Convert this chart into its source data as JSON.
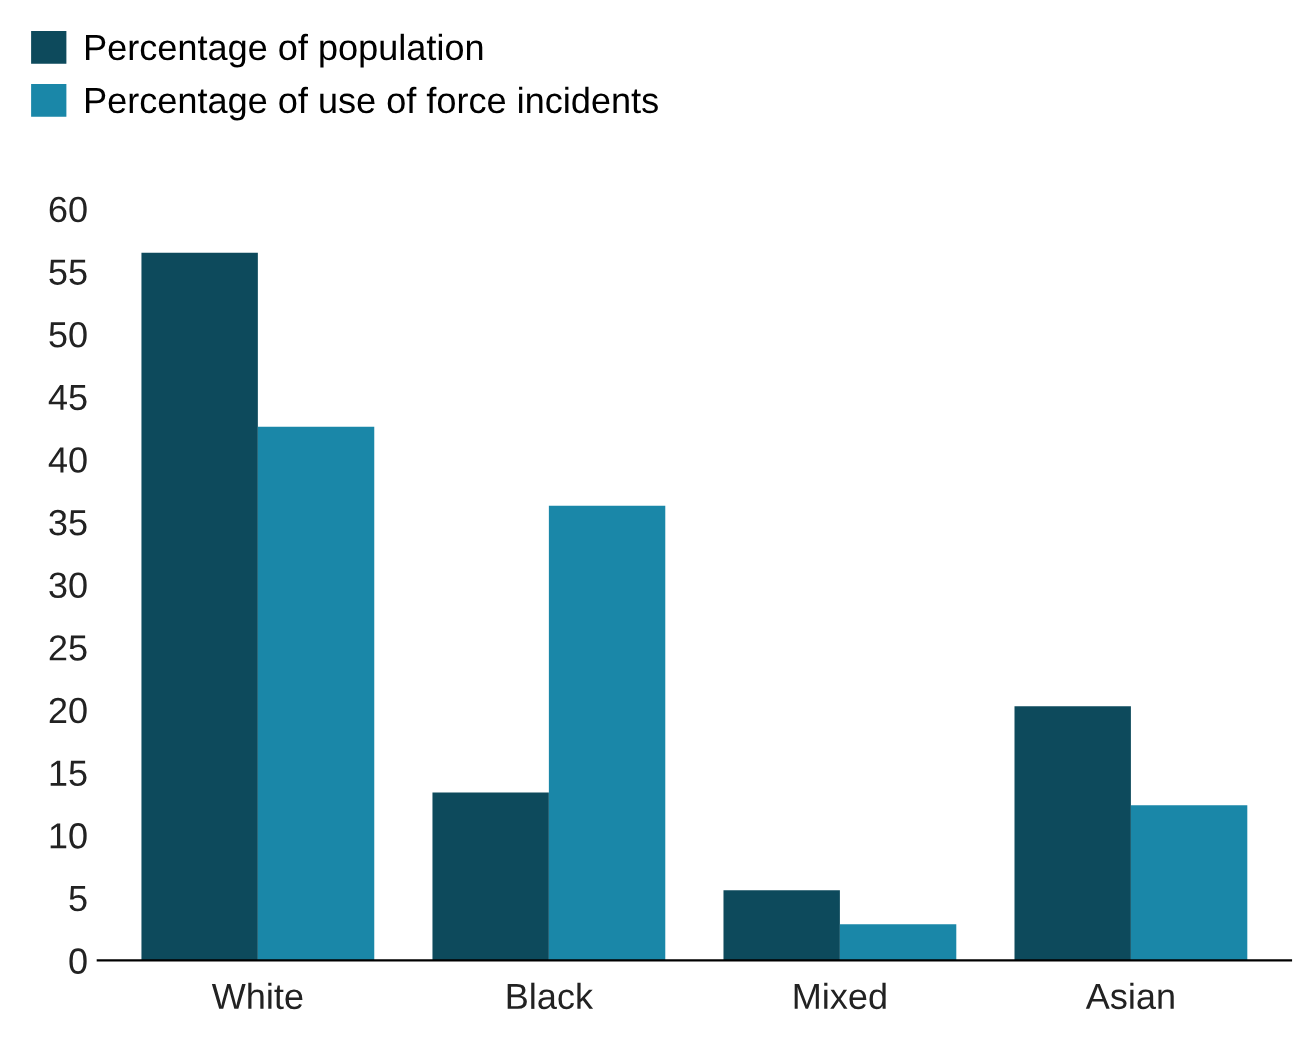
{
  "chart_data": {
    "type": "bar",
    "categories": [
      "White",
      "Black",
      "Mixed",
      "Asian"
    ],
    "series": [
      {
        "name": "Percentage of population",
        "color": "#0d4a5c",
        "values": [
          56.5,
          13.4,
          5.6,
          20.3
        ]
      },
      {
        "name": "Percentage of use of force incidents",
        "color": "#1a87a8",
        "values": [
          42.6,
          36.3,
          2.9,
          12.4
        ]
      }
    ],
    "ylim": [
      0,
      60
    ],
    "yticks": [
      0,
      5,
      10,
      15,
      20,
      25,
      30,
      35,
      40,
      45,
      50,
      55,
      60
    ],
    "grid": false,
    "legend": "top left"
  }
}
